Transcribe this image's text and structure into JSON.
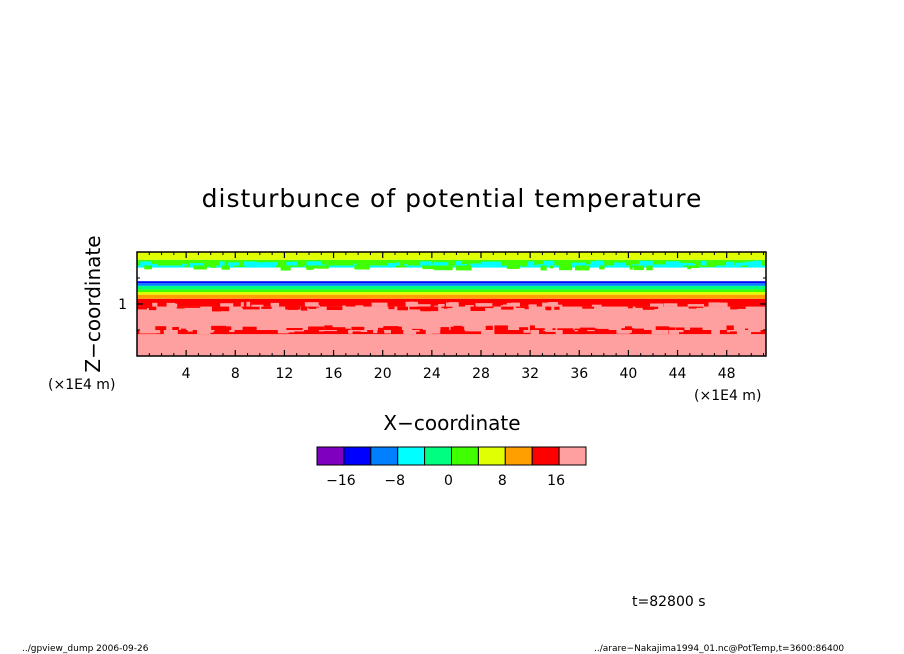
{
  "chart_data": {
    "type": "heatmap",
    "title": "disturbunce of potential temperature",
    "xlabel": "X−coordinate",
    "ylabel": "Z−coordinate",
    "x_unit": "(×1E4 m)",
    "y_unit": "(×1E4 m)",
    "x_ticks": [
      "4",
      "8",
      "12",
      "16",
      "20",
      "24",
      "28",
      "32",
      "36",
      "40",
      "44",
      "48"
    ],
    "x_tick_values": [
      4,
      8,
      12,
      16,
      20,
      24,
      28,
      32,
      36,
      40,
      44,
      48
    ],
    "y_ticks": [
      "1"
    ],
    "y_tick_values": [
      1
    ],
    "xlim": [
      0,
      51.2
    ],
    "ylim": [
      0,
      2.0
    ],
    "layers": [
      {
        "z": [
          0.0,
          0.25
        ],
        "value": 20
      },
      {
        "z": [
          0.25,
          0.42
        ],
        "value": 16
      },
      {
        "z": [
          0.42,
          0.5
        ],
        "value": 12
      },
      {
        "z": [
          0.5,
          0.95
        ],
        "value": 16
      },
      {
        "z": [
          0.95,
          1.1
        ],
        "value": 12
      },
      {
        "z": [
          1.1,
          1.18
        ],
        "value": 8
      },
      {
        "z": [
          1.18,
          1.23
        ],
        "value": 4
      },
      {
        "z": [
          1.23,
          1.28
        ],
        "value": 0
      },
      {
        "z": [
          1.28,
          1.35
        ],
        "value": -4
      },
      {
        "z": [
          1.35,
          1.4
        ],
        "value": -12
      },
      {
        "z": [
          1.4,
          1.44
        ],
        "value": -16
      },
      {
        "z": [
          1.44,
          1.7
        ],
        "value": null
      },
      {
        "z": [
          1.7,
          1.74
        ],
        "value": -8
      },
      {
        "z": [
          1.74,
          1.85
        ],
        "value": 0
      },
      {
        "z": [
          1.85,
          2.0
        ],
        "value": 4
      }
    ],
    "colorbar": {
      "levels": [
        -20,
        -16,
        -12,
        -8,
        -4,
        0,
        4,
        8,
        12,
        16,
        20
      ],
      "colors": [
        "#7f00bf",
        "#0000ff",
        "#0080ff",
        "#00ffff",
        "#00ff80",
        "#40ff00",
        "#e0ff00",
        "#ffa000",
        "#ff0000",
        "#ffa0a0"
      ],
      "tick_labels": [
        "−16",
        "−8",
        "0",
        "8",
        "16"
      ],
      "tick_values": [
        -16,
        -8,
        0,
        8,
        16
      ]
    },
    "grid": false
  },
  "time_label": "t=82800 s",
  "footer_left": "../gpview_dump  2006-09-26",
  "footer_right": "../arare−Nakajima1994_01.nc@PotTemp,t=3600:86400"
}
